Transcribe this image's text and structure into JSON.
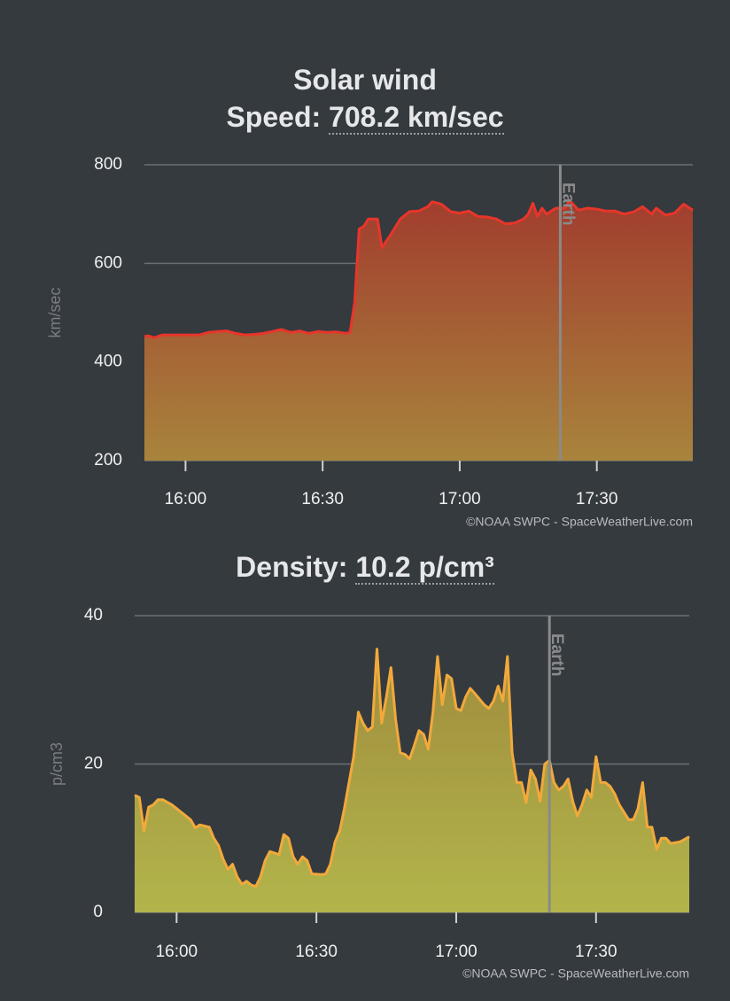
{
  "chart_data": [
    {
      "type": "area",
      "title": "Solar wind",
      "label": "Speed:",
      "current": "708.2 km/sec",
      "y_label": "km/sec",
      "color": "#e8352a",
      "gradient": [
        "#a23d2e",
        "#a8843c"
      ],
      "xlim": [
        "15:51",
        "17:51"
      ],
      "xticks": [
        "16:00",
        "16:30",
        "17:00",
        "17:30"
      ],
      "ylim": [
        200,
        800
      ],
      "yticks": [
        200,
        400,
        600,
        800
      ],
      "grid": true,
      "annotation": {
        "text": "Earth",
        "x": "17:22"
      },
      "source": "©NOAA SWPC - SpaceWeatherLive.com",
      "x": [
        "15:51",
        "15:52",
        "15:53",
        "15:55",
        "15:58",
        "16:00",
        "16:03",
        "16:05",
        "16:07",
        "16:09",
        "16:11",
        "16:13",
        "16:15",
        "16:17",
        "16:19",
        "16:21",
        "16:23",
        "16:25",
        "16:27",
        "16:29",
        "16:31",
        "16:33",
        "16:35",
        "16:36",
        "16:37",
        "16:38",
        "16:39",
        "16:40",
        "16:42",
        "16:43",
        "16:45",
        "16:47",
        "16:49",
        "16:51",
        "16:53",
        "16:54",
        "16:56",
        "16:58",
        "17:00",
        "17:02",
        "17:04",
        "17:06",
        "17:08",
        "17:10",
        "17:12",
        "17:14",
        "17:15",
        "17:16",
        "17:17",
        "17:18",
        "17:19",
        "17:21",
        "17:23",
        "17:24",
        "17:26",
        "17:28",
        "17:30",
        "17:32",
        "17:34",
        "17:36",
        "17:38",
        "17:40",
        "17:42",
        "17:43",
        "17:45",
        "17:47",
        "17:49",
        "17:51"
      ],
      "values": [
        452,
        453,
        449,
        455,
        455,
        455,
        455,
        460,
        462,
        463,
        458,
        455,
        456,
        458,
        462,
        466,
        460,
        463,
        458,
        462,
        460,
        461,
        458,
        460,
        520,
        670,
        675,
        690,
        690,
        632,
        660,
        690,
        705,
        706,
        715,
        725,
        720,
        705,
        702,
        706,
        695,
        694,
        690,
        680,
        682,
        690,
        700,
        722,
        695,
        712,
        700,
        712,
        712,
        728,
        708,
        712,
        710,
        706,
        706,
        700,
        704,
        715,
        700,
        712,
        698,
        702,
        720,
        708
      ]
    },
    {
      "type": "area",
      "label": "Density:",
      "current": "10.2 p/cm³",
      "y_label": "p/cm3",
      "color": "#f2a93b",
      "gradient": [
        "#a08c3d",
        "#b2b54b"
      ],
      "xlim": [
        "15:51",
        "17:50"
      ],
      "xticks": [
        "16:00",
        "16:30",
        "17:00",
        "17:30"
      ],
      "ylim": [
        0,
        40
      ],
      "yticks": [
        0,
        20,
        40
      ],
      "grid": true,
      "annotation": {
        "text": "Earth",
        "x": "17:20"
      },
      "source": "©NOAA SWPC - SpaceWeatherLive.com",
      "x": [
        "15:51",
        "15:52",
        "15:53",
        "15:54",
        "15:55",
        "15:56",
        "15:57",
        "15:59",
        "16:01",
        "16:03",
        "16:04",
        "16:05",
        "16:07",
        "16:08",
        "16:09",
        "16:10",
        "16:11",
        "16:12",
        "16:13",
        "16:14",
        "16:15",
        "16:16",
        "16:17",
        "16:18",
        "16:19",
        "16:20",
        "16:22",
        "16:23",
        "16:24",
        "16:25",
        "16:26",
        "16:27",
        "16:28",
        "16:29",
        "16:31",
        "16:32",
        "16:33",
        "16:34",
        "16:35",
        "16:36",
        "16:38",
        "16:39",
        "16:40",
        "16:41",
        "16:42",
        "16:43",
        "16:44",
        "16:45",
        "16:46",
        "16:47",
        "16:48",
        "16:49",
        "16:50",
        "16:51",
        "16:52",
        "16:53",
        "16:54",
        "16:55",
        "16:56",
        "16:57",
        "16:58",
        "16:59",
        "17:00",
        "17:01",
        "17:02",
        "17:03",
        "17:04",
        "17:06",
        "17:07",
        "17:08",
        "17:09",
        "17:10",
        "17:11",
        "17:12",
        "17:13",
        "17:14",
        "17:15",
        "17:16",
        "17:17",
        "17:18",
        "17:19",
        "17:20",
        "17:21",
        "17:22",
        "17:23",
        "17:24",
        "17:25",
        "17:26",
        "17:27",
        "17:28",
        "17:29",
        "17:30",
        "17:31",
        "17:32",
        "17:33",
        "17:34",
        "17:35",
        "17:36",
        "17:37",
        "17:38",
        "17:39",
        "17:40",
        "17:41",
        "17:42",
        "17:43",
        "17:44",
        "17:45",
        "17:46",
        "17:48",
        "17:50"
      ],
      "values": [
        15.8,
        15.5,
        11,
        14.2,
        14.5,
        15.2,
        15.2,
        14.5,
        13.5,
        12.5,
        11.4,
        11.8,
        11.5,
        10,
        9,
        7.2,
        5.8,
        6.5,
        4.8,
        3.8,
        4.2,
        3.7,
        3.5,
        4.8,
        7,
        8.2,
        7.8,
        10.5,
        10,
        7.5,
        6.5,
        7.5,
        7,
        5.2,
        5.1,
        5.2,
        6.5,
        9.5,
        11,
        14,
        21,
        27,
        25.5,
        24.5,
        25,
        35.5,
        25.5,
        29,
        33,
        26,
        21.5,
        21.3,
        20.7,
        22.5,
        24.5,
        24,
        22,
        27,
        34.5,
        28,
        32,
        31.5,
        27.5,
        27.2,
        29,
        30.2,
        29.5,
        28,
        27.5,
        28.5,
        30.5,
        28.5,
        34.5,
        21.5,
        17.5,
        17.5,
        14.8,
        19.2,
        18,
        15,
        20,
        20.5,
        17.5,
        16.5,
        17,
        18,
        15,
        13,
        14.5,
        16.5,
        15.5,
        21,
        17.5,
        17.5,
        17,
        16,
        14.5,
        13.5,
        12.5,
        12.5,
        14,
        17.5,
        11.5,
        11.5,
        8.5,
        10,
        10,
        9.3,
        9.5,
        10.2
      ]
    }
  ]
}
